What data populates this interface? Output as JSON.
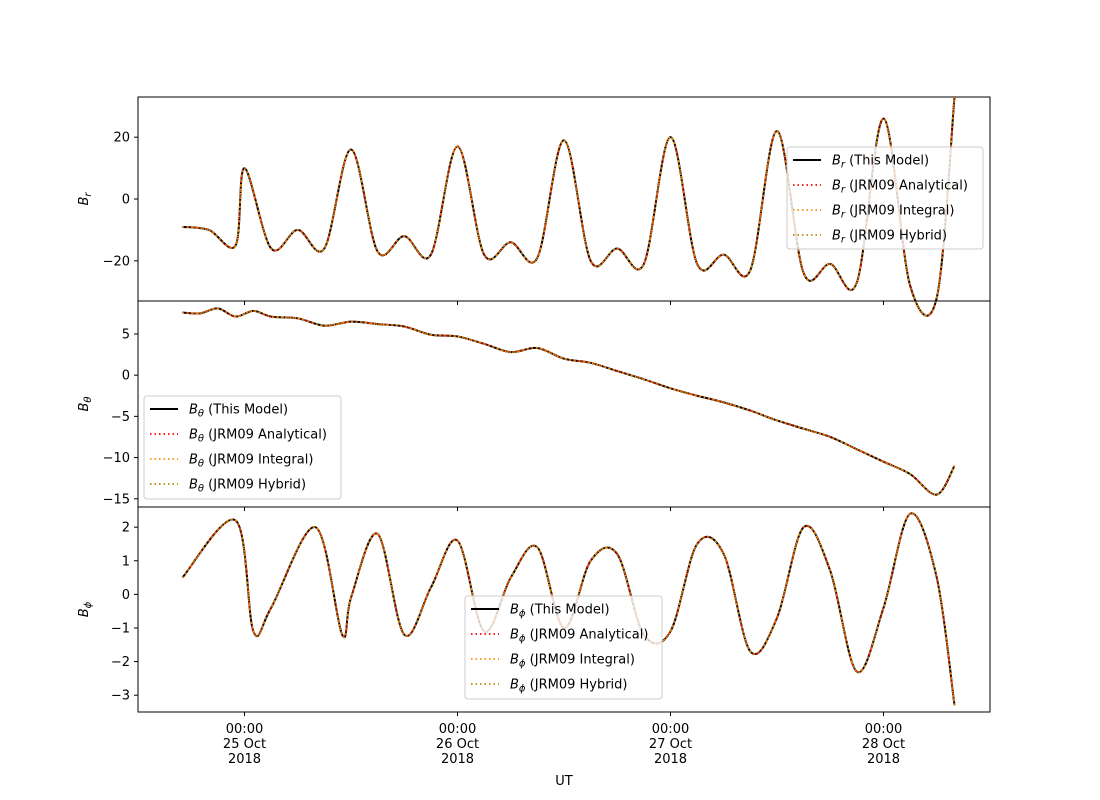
{
  "chart_data": [
    {
      "type": "line",
      "ylabel": "B_r",
      "ylim": [
        -33,
        33
      ],
      "yticks": [
        20,
        0,
        -20
      ],
      "ytick_labels": [
        "20",
        "0",
        "−20"
      ],
      "legend_loc": "center-right",
      "series": [
        {
          "name": "(This Model)",
          "color": "#000000",
          "style": "solid"
        },
        {
          "name": "(JRM09 Analytical)",
          "color": "#ff0000",
          "style": "dotted"
        },
        {
          "name": "(JRM09 Integral)",
          "color": "#ff8c00",
          "style": "dotted"
        },
        {
          "name": "(JRM09 Hybrid)",
          "color": "#b8860b",
          "style": "dotted"
        }
      ],
      "x": [
        "2018-10-24T17:00",
        "2018-10-24T20:00",
        "2018-10-24T23:00",
        "2018-10-25T00:00",
        "2018-10-25T03:00",
        "2018-10-25T06:00",
        "2018-10-25T09:00",
        "2018-10-25T12:00",
        "2018-10-25T15:00",
        "2018-10-25T18:00",
        "2018-10-25T21:00",
        "2018-10-26T00:00",
        "2018-10-26T03:00",
        "2018-10-26T06:00",
        "2018-10-26T09:00",
        "2018-10-26T12:00",
        "2018-10-26T15:00",
        "2018-10-26T18:00",
        "2018-10-26T21:00",
        "2018-10-27T00:00",
        "2018-10-27T03:00",
        "2018-10-27T06:00",
        "2018-10-27T09:00",
        "2018-10-27T12:00",
        "2018-10-27T15:00",
        "2018-10-27T18:00",
        "2018-10-27T21:00",
        "2018-10-28T00:00",
        "2018-10-28T03:00",
        "2018-10-28T06:00",
        "2018-10-28T08:00"
      ],
      "y": [
        -9,
        -10,
        -15,
        10,
        -16,
        -10,
        -16,
        16,
        -17,
        -12,
        -18,
        17,
        -18,
        -14,
        -19,
        19,
        -20,
        -16,
        -21,
        20,
        -21,
        -18,
        -23,
        22,
        -24,
        -21,
        -27,
        26,
        -28,
        -32,
        33
      ]
    },
    {
      "type": "line",
      "ylabel": "B_θ",
      "ylim": [
        -16,
        9
      ],
      "yticks": [
        5,
        0,
        -5,
        -10,
        -15
      ],
      "ytick_labels": [
        "5",
        "0",
        "−5",
        "−10",
        "−15"
      ],
      "legend_loc": "lower-left",
      "series": [
        {
          "name": "(This Model)",
          "color": "#000000",
          "style": "solid"
        },
        {
          "name": "(JRM09 Analytical)",
          "color": "#ff0000",
          "style": "dotted"
        },
        {
          "name": "(JRM09 Integral)",
          "color": "#ff8c00",
          "style": "dotted"
        },
        {
          "name": "(JRM09 Hybrid)",
          "color": "#b8860b",
          "style": "dotted"
        }
      ],
      "x": [
        "2018-10-24T17:00",
        "2018-10-24T19:00",
        "2018-10-24T21:00",
        "2018-10-24T23:00",
        "2018-10-25T01:00",
        "2018-10-25T03:00",
        "2018-10-25T06:00",
        "2018-10-25T09:00",
        "2018-10-25T12:00",
        "2018-10-25T15:00",
        "2018-10-25T18:00",
        "2018-10-25T21:00",
        "2018-10-26T00:00",
        "2018-10-26T03:00",
        "2018-10-26T06:00",
        "2018-10-26T09:00",
        "2018-10-26T12:00",
        "2018-10-26T15:00",
        "2018-10-26T18:00",
        "2018-10-26T21:00",
        "2018-10-27T00:00",
        "2018-10-27T03:00",
        "2018-10-27T06:00",
        "2018-10-27T09:00",
        "2018-10-27T12:00",
        "2018-10-27T15:00",
        "2018-10-27T18:00",
        "2018-10-27T21:00",
        "2018-10-28T00:00",
        "2018-10-28T03:00",
        "2018-10-28T06:00",
        "2018-10-28T08:00"
      ],
      "y": [
        7.6,
        7.5,
        8.1,
        7.1,
        7.8,
        7.1,
        6.9,
        6.0,
        6.5,
        6.2,
        5.9,
        4.9,
        4.7,
        3.8,
        2.8,
        3.3,
        2.0,
        1.5,
        0.5,
        -0.5,
        -1.6,
        -2.5,
        -3.3,
        -4.3,
        -5.5,
        -6.5,
        -7.5,
        -9.0,
        -10.5,
        -12.0,
        -14.5,
        -11.0
      ]
    },
    {
      "type": "line",
      "ylabel": "B_ϕ",
      "ylim": [
        -3.5,
        2.6
      ],
      "yticks": [
        2,
        1,
        0,
        -1,
        -2,
        -3
      ],
      "ytick_labels": [
        "2",
        "1",
        "0",
        "−1",
        "−2",
        "−3"
      ],
      "legend_loc": "lower-center",
      "series": [
        {
          "name": "(This Model)",
          "color": "#000000",
          "style": "solid"
        },
        {
          "name": "(JRM09 Analytical)",
          "color": "#ff0000",
          "style": "dotted"
        },
        {
          "name": "(JRM09 Integral)",
          "color": "#ff8c00",
          "style": "dotted"
        },
        {
          "name": "(JRM09 Hybrid)",
          "color": "#b8860b",
          "style": "dotted"
        }
      ],
      "x": [
        "2018-10-24T17:00",
        "2018-10-24T23:00",
        "2018-10-25T01:00",
        "2018-10-25T03:00",
        "2018-10-25T08:00",
        "2018-10-25T11:00",
        "2018-10-25T12:00",
        "2018-10-25T15:00",
        "2018-10-25T18:00",
        "2018-10-25T21:00",
        "2018-10-26T00:00",
        "2018-10-26T03:00",
        "2018-10-26T06:00",
        "2018-10-26T09:00",
        "2018-10-26T12:00",
        "2018-10-26T15:00",
        "2018-10-26T18:00",
        "2018-10-26T21:00",
        "2018-10-27T00:00",
        "2018-10-27T03:00",
        "2018-10-27T06:00",
        "2018-10-27T09:00",
        "2018-10-27T12:00",
        "2018-10-27T15:00",
        "2018-10-27T18:00",
        "2018-10-27T21:00",
        "2018-10-28T00:00",
        "2018-10-28T03:00",
        "2018-10-28T06:00",
        "2018-10-28T08:00"
      ],
      "y": [
        0.5,
        2.2,
        -1.1,
        -0.4,
        2.0,
        -1.2,
        -0.1,
        1.8,
        -1.2,
        0.2,
        1.6,
        -1.1,
        0.5,
        1.4,
        -1.0,
        1.0,
        1.2,
        -1.2,
        -1.1,
        1.5,
        1.2,
        -1.7,
        -0.7,
        2.0,
        0.7,
        -2.3,
        -0.4,
        2.4,
        0.5,
        -3.3
      ]
    }
  ],
  "xaxis": {
    "label": "UT",
    "ticks": [
      {
        "at": "2018-10-25T00:00",
        "lines": [
          "00:00",
          "25 Oct",
          "2018"
        ]
      },
      {
        "at": "2018-10-26T00:00",
        "lines": [
          "00:00",
          "26 Oct",
          "2018"
        ]
      },
      {
        "at": "2018-10-27T00:00",
        "lines": [
          "00:00",
          "27 Oct",
          "2018"
        ]
      },
      {
        "at": "2018-10-28T00:00",
        "lines": [
          "00:00",
          "28 Oct",
          "2018"
        ]
      }
    ],
    "range": [
      "2018-10-24T12:00",
      "2018-10-28T12:00"
    ]
  }
}
